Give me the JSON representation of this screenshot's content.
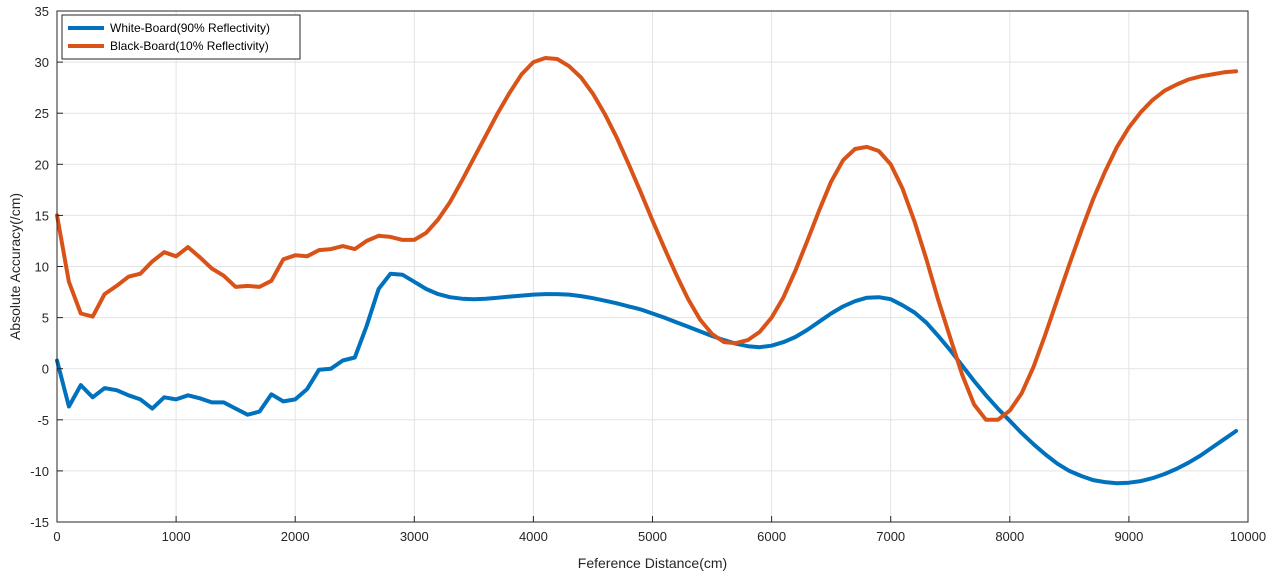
{
  "chart_data": {
    "type": "line",
    "title": "",
    "xlabel": "Feference Distance(cm)",
    "ylabel": "Absolute Accuracy(/cm)",
    "xlim": [
      0,
      10000
    ],
    "ylim": [
      -15,
      35
    ],
    "xticks": [
      0,
      1000,
      2000,
      3000,
      4000,
      5000,
      6000,
      7000,
      8000,
      9000,
      10000
    ],
    "yticks": [
      -15,
      -10,
      -5,
      0,
      5,
      10,
      15,
      20,
      25,
      30,
      35
    ],
    "grid": true,
    "legend_position": "top-left",
    "series": [
      {
        "name": "White-Board(90% Reflectivity)",
        "color": "#0072BD",
        "x": [
          0,
          100,
          200,
          300,
          400,
          500,
          600,
          700,
          800,
          900,
          1000,
          1100,
          1200,
          1300,
          1400,
          1500,
          1600,
          1700,
          1800,
          1900,
          2000,
          2100,
          2200,
          2300,
          2400,
          2500,
          2600,
          2700,
          2800,
          2900,
          3000,
          3100,
          3200,
          3300,
          3400,
          3500,
          3600,
          3700,
          3800,
          3900,
          4000,
          4100,
          4200,
          4300,
          4400,
          4500,
          4600,
          4700,
          4800,
          4900,
          5000,
          5100,
          5200,
          5300,
          5400,
          5500,
          5600,
          5700,
          5800,
          5900,
          6000,
          6100,
          6200,
          6300,
          6400,
          6500,
          6600,
          6700,
          6800,
          6900,
          7000,
          7100,
          7200,
          7300,
          7400,
          7500,
          7600,
          7700,
          7800,
          7900,
          8000,
          8100,
          8200,
          8300,
          8400,
          8500,
          8600,
          8700,
          8800,
          8900,
          9000,
          9100,
          9200,
          9300,
          9400,
          9500,
          9600,
          9700,
          9800,
          9900
        ],
        "y": [
          0.8,
          -3.7,
          -1.6,
          -2.8,
          -1.9,
          -2.1,
          -2.6,
          -3.0,
          -3.9,
          -2.8,
          -3.0,
          -2.6,
          -2.9,
          -3.3,
          -3.3,
          -3.9,
          -4.5,
          -4.2,
          -2.5,
          -3.2,
          -3.0,
          -2.0,
          -0.1,
          0.0,
          0.8,
          1.1,
          4.2,
          7.8,
          9.3,
          9.2,
          8.5,
          7.8,
          7.3,
          7.0,
          6.85,
          6.8,
          6.85,
          6.95,
          7.05,
          7.15,
          7.25,
          7.3,
          7.3,
          7.25,
          7.1,
          6.9,
          6.65,
          6.4,
          6.1,
          5.8,
          5.4,
          5.0,
          4.55,
          4.1,
          3.65,
          3.2,
          2.8,
          2.45,
          2.2,
          2.1,
          2.25,
          2.6,
          3.1,
          3.8,
          4.6,
          5.4,
          6.1,
          6.6,
          6.95,
          7.0,
          6.8,
          6.2,
          5.5,
          4.5,
          3.2,
          1.8,
          0.3,
          -1.2,
          -2.6,
          -3.9,
          -5.1,
          -6.3,
          -7.4,
          -8.4,
          -9.3,
          -10.0,
          -10.5,
          -10.9,
          -11.1,
          -11.2,
          -11.15,
          -11.0,
          -10.7,
          -10.3,
          -9.8,
          -9.2,
          -8.5,
          -7.7,
          -6.9,
          -6.1
        ]
      },
      {
        "name": "Black-Board(10% Reflectivity)",
        "color": "#D95319",
        "x": [
          0,
          100,
          200,
          300,
          400,
          500,
          600,
          700,
          800,
          900,
          1000,
          1100,
          1200,
          1300,
          1400,
          1500,
          1600,
          1700,
          1800,
          1900,
          2000,
          2100,
          2200,
          2300,
          2400,
          2500,
          2600,
          2700,
          2800,
          2900,
          3000,
          3100,
          3200,
          3300,
          3400,
          3500,
          3600,
          3700,
          3800,
          3900,
          4000,
          4100,
          4200,
          4300,
          4400,
          4500,
          4600,
          4700,
          4800,
          4900,
          5000,
          5100,
          5200,
          5300,
          5400,
          5500,
          5600,
          5700,
          5800,
          5900,
          6000,
          6100,
          6200,
          6300,
          6400,
          6500,
          6600,
          6700,
          6800,
          6900,
          7000,
          7100,
          7200,
          7300,
          7400,
          7500,
          7600,
          7700,
          7800,
          7900,
          8000,
          8100,
          8200,
          8300,
          8400,
          8500,
          8600,
          8700,
          8800,
          8900,
          9000,
          9100,
          9200,
          9300,
          9400,
          9500,
          9600,
          9700,
          9800,
          9900
        ],
        "y": [
          15.0,
          8.5,
          5.4,
          5.1,
          7.3,
          8.1,
          9.0,
          9.3,
          10.5,
          11.4,
          11.0,
          11.9,
          10.9,
          9.8,
          9.1,
          8.0,
          8.1,
          8.0,
          8.6,
          10.7,
          11.1,
          11.0,
          11.6,
          11.7,
          12.0,
          11.7,
          12.5,
          13.0,
          12.9,
          12.6,
          12.6,
          13.3,
          14.6,
          16.3,
          18.4,
          20.6,
          22.8,
          25.0,
          27.0,
          28.8,
          30.0,
          30.4,
          30.3,
          29.6,
          28.5,
          26.9,
          24.9,
          22.6,
          20.0,
          17.3,
          14.5,
          11.8,
          9.2,
          6.8,
          4.8,
          3.4,
          2.6,
          2.5,
          2.8,
          3.6,
          5.0,
          7.0,
          9.6,
          12.5,
          15.5,
          18.3,
          20.4,
          21.5,
          21.7,
          21.3,
          20.0,
          17.6,
          14.4,
          10.7,
          6.7,
          3.0,
          -0.6,
          -3.5,
          -5.0,
          -5.0,
          -4.1,
          -2.4,
          0.2,
          3.4,
          6.8,
          10.2,
          13.5,
          16.6,
          19.3,
          21.7,
          23.6,
          25.1,
          26.3,
          27.2,
          27.8,
          28.3,
          28.6,
          28.8,
          29.0,
          29.1
        ]
      }
    ]
  }
}
